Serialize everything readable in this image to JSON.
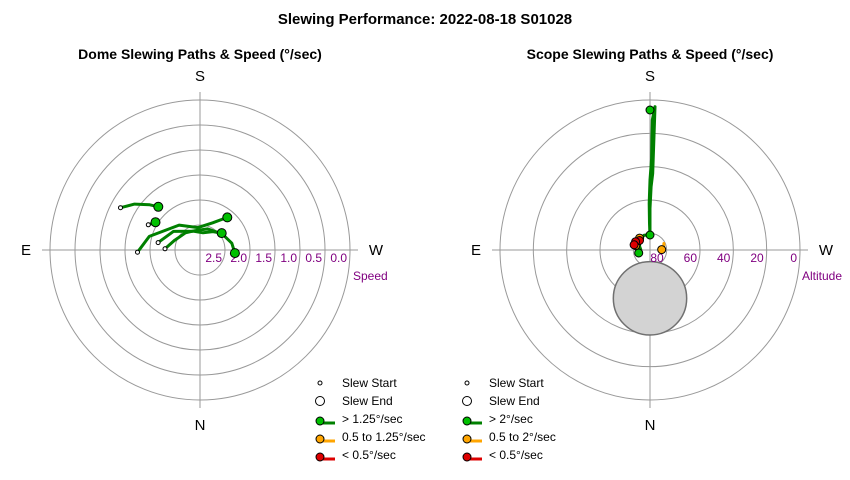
{
  "title": "Slewing Performance: 2022-08-18 S01028",
  "colors": {
    "fast": "#00c000",
    "fast_line": "#008000",
    "medium": "#ffa500",
    "slow": "#dd0000",
    "axes": "#999999",
    "tick_text": "#800080"
  },
  "chart_data": [
    {
      "type": "polar-path",
      "title": "Dome Slewing Paths & Speed (°/sec)",
      "directions": {
        "top": "S",
        "left": "E",
        "right": "W",
        "bottom": "N"
      },
      "radial_axis": {
        "label": "Speed",
        "ticks": [
          "2.5",
          "2.0",
          "1.5",
          "1.0",
          "0.5",
          "0.0"
        ],
        "values": [
          2.5,
          2.0,
          1.5,
          1.0,
          0.5,
          0.0
        ],
        "center_value": 3.0
      },
      "legend": {
        "entries": [
          {
            "key": "start",
            "label": "Slew Start"
          },
          {
            "key": "end",
            "label": "Slew End"
          },
          {
            "key": "fast",
            "label": "> 1.25°/sec"
          },
          {
            "key": "medium",
            "label": "0.5 to 1.25°/sec"
          },
          {
            "key": "slow",
            "label": "< 0.5°/sec"
          }
        ]
      },
      "paths": [
        {
          "speed": "fast",
          "points": [
            [
              -92,
              1.75
            ],
            [
              -75,
              1.95
            ],
            [
              -40,
              2.35
            ],
            [
              -5,
              2.55
            ],
            [
              25,
              2.4
            ],
            [
              40,
              2.15
            ]
          ]
        },
        {
          "speed": "fast",
          "points": [
            [
              -62,
              1.2
            ],
            [
              -55,
              1.4
            ],
            [
              -48,
              1.65
            ],
            [
              -44,
              1.8
            ]
          ]
        },
        {
          "speed": "fast",
          "points": [
            [
              -88,
              2.3
            ],
            [
              -70,
              2.45
            ],
            [
              -40,
              2.55
            ],
            [
              -15,
              2.6
            ],
            [
              20,
              2.55
            ],
            [
              55,
              2.45
            ],
            [
              78,
              2.35
            ],
            [
              95,
              2.3
            ]
          ]
        },
        {
          "speed": "fast",
          "points": [
            [
              -80,
              2.15
            ],
            [
              -55,
              2.35
            ],
            [
              -20,
              2.6
            ],
            [
              10,
              2.65
            ],
            [
              35,
              2.55
            ],
            [
              52,
              2.45
            ]
          ]
        },
        {
          "speed": "fast",
          "points": [
            [
              -64,
              1.85
            ],
            [
              -58,
              1.95
            ]
          ]
        }
      ]
    },
    {
      "type": "polar-path",
      "title": "Scope Slewing Paths & Speed (°/sec)",
      "directions": {
        "top": "S",
        "left": "E",
        "right": "W",
        "bottom": "N"
      },
      "radial_axis": {
        "label": "Altitude",
        "ticks": [
          "80",
          "60",
          "40",
          "20",
          "0"
        ],
        "values": [
          80,
          60,
          40,
          20,
          0
        ],
        "center_value": 90
      },
      "shaded_region": {
        "az": 180,
        "alt": 61,
        "radius_deg": 22
      },
      "legend": {
        "entries": [
          {
            "key": "start",
            "label": "Slew Start"
          },
          {
            "key": "end",
            "label": "Slew End"
          },
          {
            "key": "fast",
            "label": "> 2°/sec"
          },
          {
            "key": "medium",
            "label": "0.5 to 2°/sec"
          },
          {
            "key": "slow",
            "label": "< 0.5°/sec"
          }
        ]
      },
      "paths": [
        {
          "speed": "fast",
          "points": [
            [
              0,
              82
            ],
            [
              0,
              75
            ],
            [
              0,
              65
            ],
            [
              1,
              52
            ],
            [
              2,
              44
            ],
            [
              2,
              30
            ],
            [
              2,
              18
            ],
            [
              2,
              4
            ]
          ]
        },
        {
          "speed": "fast",
          "points": [
            [
              0,
              82
            ],
            [
              -1,
              74
            ],
            [
              -1,
              62
            ],
            [
              0,
              48
            ],
            [
              1,
              35
            ],
            [
              1,
              22
            ],
            [
              1,
              12
            ],
            [
              2,
              4
            ]
          ]
        },
        {
          "speed": "fast",
          "points": [
            [
              0,
              81
            ],
            [
              -22,
              80.5
            ],
            [
              -50,
              81.5
            ],
            [
              -72,
              83.5
            ],
            [
              -88,
              84.5
            ],
            [
              -105,
              83
            ]
          ]
        },
        {
          "speed": "medium",
          "points": [
            [
              65,
              80.8
            ],
            [
              75,
              81.5
            ],
            [
              85,
              82.5
            ],
            [
              88,
              83
            ]
          ]
        },
        {
          "speed": "medium",
          "points": [
            [
              -50,
              79.5
            ],
            [
              -58,
              80
            ],
            [
              -67,
              80.5
            ],
            [
              -73,
              81
            ]
          ]
        },
        {
          "speed": "slow",
          "points": [
            [
              -55,
              79.5
            ],
            [
              -65,
              79.7
            ],
            [
              -73,
              79.8
            ]
          ]
        },
        {
          "speed": "slow",
          "points": [
            [
              -48,
              81.5
            ],
            [
              -60,
              82
            ],
            [
              -68,
              82.4
            ]
          ]
        }
      ],
      "markers": [
        {
          "speed": "fast",
          "az": 0,
          "alt": 6
        },
        {
          "speed": "fast",
          "az": -105,
          "alt": 83
        },
        {
          "speed": "fast",
          "az": 0,
          "alt": 81
        },
        {
          "speed": "medium",
          "az": 88,
          "alt": 83
        },
        {
          "speed": "medium",
          "az": -41,
          "alt": 80.5
        },
        {
          "speed": "medium",
          "az": -62,
          "alt": 81
        },
        {
          "speed": "medium",
          "az": -73,
          "alt": 81
        },
        {
          "speed": "slow",
          "az": -48,
          "alt": 81.5
        },
        {
          "speed": "slow",
          "az": -60,
          "alt": 80
        },
        {
          "speed": "slow",
          "az": -72,
          "alt": 80
        }
      ]
    }
  ]
}
